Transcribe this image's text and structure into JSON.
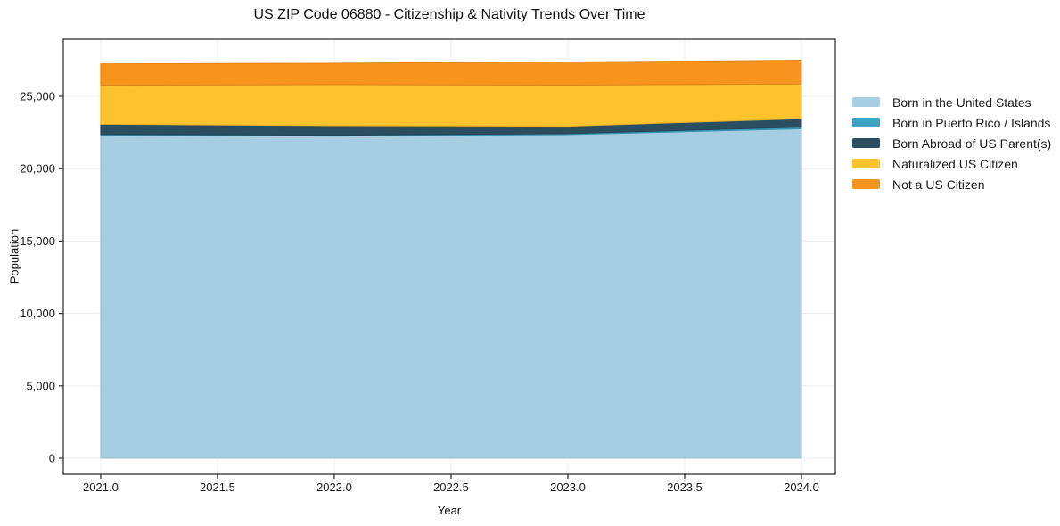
{
  "title": "US ZIP Code 06880 - Citizenship & Nativity Trends Over Time",
  "chart_data": {
    "type": "area",
    "stacked": true,
    "title": "US ZIP Code 06880 - Citizenship & Nativity Trends Over Time",
    "xlabel": "Year",
    "ylabel": "Population",
    "x": [
      2021,
      2022,
      2023,
      2024
    ],
    "series": [
      {
        "name": "Born in the United States",
        "color": "#a6cee3",
        "values": [
          22310,
          22250,
          22350,
          22760
        ]
      },
      {
        "name": "Born in Puerto Rico / Islands",
        "color": "#3ba3c4",
        "values": [
          60,
          60,
          70,
          110
        ]
      },
      {
        "name": "Born Abroad of US Parent(s)",
        "color": "#2a4d5f",
        "values": [
          700,
          660,
          510,
          580
        ]
      },
      {
        "name": "Naturalized US Citizen",
        "color": "#fdc32e",
        "values": [
          2690,
          2830,
          2840,
          2400
        ]
      },
      {
        "name": "Not a US Citizen",
        "color": "#f7941d",
        "values": [
          1480,
          1480,
          1600,
          1640
        ]
      }
    ],
    "x_tick_labels": [
      "2021.0",
      "2021.5",
      "2022.0",
      "2022.5",
      "2023.0",
      "2023.5",
      "2024.0"
    ],
    "y_tick_labels": [
      "0",
      "5,000",
      "10,000",
      "15,000",
      "20,000",
      "25,000"
    ],
    "xlim": [
      2020.84,
      2024.145
    ],
    "ylim": [
      -1108,
      28940
    ],
    "grid": true,
    "grid_color": "#ececec",
    "spine_color": "#222222",
    "tick_label_color": "#1a1a1a",
    "legend_position": "right-outside"
  }
}
